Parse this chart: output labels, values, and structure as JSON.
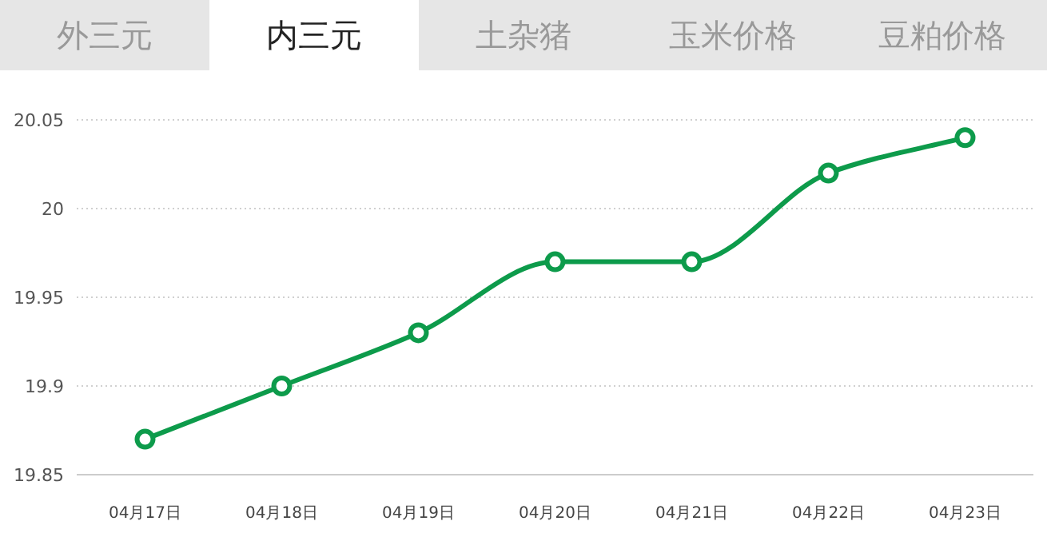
{
  "chart_data": {
    "type": "line",
    "annotations": [
      "外三元",
      "内三元",
      "土杂猪",
      "玉米价格",
      "豆粕价格"
    ],
    "categories": [
      "04月17日",
      "04月18日",
      "04月19日",
      "04月20日",
      "04月21日",
      "04月22日",
      "04月23日"
    ],
    "series": [
      {
        "color": "#0d9b4b",
        "values": [
          19.87,
          19.9,
          19.93,
          19.97,
          19.97,
          20.02,
          20.04
        ]
      }
    ],
    "ylim": [
      19.85,
      20.05
    ],
    "yticks": [
      19.85,
      {
        "value": 19.9,
        "label": "19.9"
      },
      19.95,
      {
        "value": 20,
        "label": "20"
      },
      20.05
    ],
    "grid": "y",
    "marker": "circle",
    "line_style": "solid"
  }
}
